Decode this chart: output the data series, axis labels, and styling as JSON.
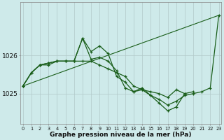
{
  "xlabel": "Graphe pression niveau de la mer (hPa)",
  "background_color": "#ceeaea",
  "grid_color": "#b0c8c8",
  "line_color": "#1a5e1a",
  "x_labels": [
    "0",
    "1",
    "2",
    "3",
    "4",
    "5",
    "6",
    "7",
    "8",
    "9",
    "10",
    "11",
    "12",
    "13",
    "14",
    "15",
    "16",
    "17",
    "18",
    "19",
    "20",
    "21",
    "22",
    "23"
  ],
  "yticks": [
    1025,
    1026
  ],
  "ylim": [
    1024.2,
    1027.4
  ],
  "xlim": [
    -0.3,
    23.3
  ],
  "series": [
    [
      1025.2,
      1025.55,
      1025.75,
      1025.75,
      1025.85,
      1025.85,
      1025.85,
      1025.85,
      1025.85,
      1025.75,
      1025.65,
      1025.55,
      1025.45,
      1025.2,
      1025.1,
      1024.95,
      1024.85,
      1024.7,
      1024.8,
      1024.95,
      1025.0,
      1025.05,
      1025.15,
      1027.05
    ],
    [
      1025.2,
      1025.55,
      1025.75,
      1025.8,
      1025.85,
      1025.85,
      1025.85,
      1026.45,
      1026.1,
      1026.25,
      1026.05,
      1025.45,
      1025.3,
      1025.05,
      1025.15,
      1024.95,
      1024.75,
      1024.55,
      1024.65,
      1025.0,
      1025.05,
      null,
      null,
      null
    ],
    [
      1025.2,
      1025.55,
      1025.75,
      1025.8,
      1025.85,
      1025.85,
      1025.85,
      1026.45,
      1025.9,
      1025.95,
      1025.85,
      1025.6,
      1025.15,
      1025.05,
      1025.1,
      1025.05,
      1025.0,
      1024.9,
      1025.1,
      1025.0,
      null,
      null,
      null,
      null
    ]
  ],
  "trend_line": [
    1025.2,
    1027.05
  ],
  "trend_x": [
    0,
    23
  ]
}
